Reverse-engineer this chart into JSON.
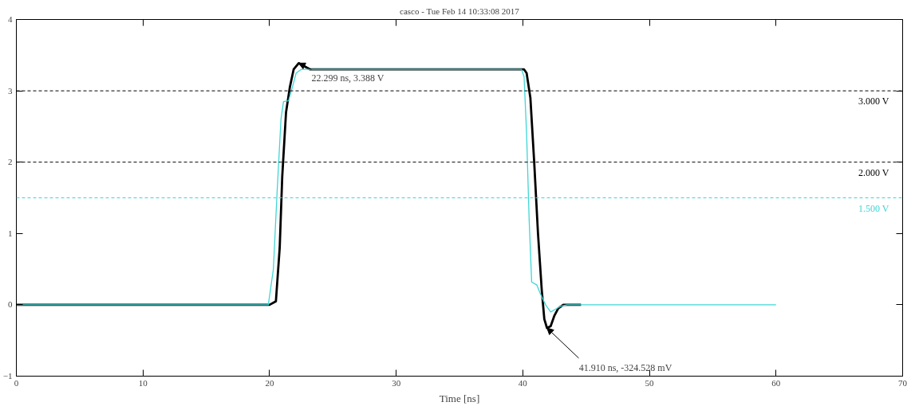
{
  "chart_data": {
    "type": "line",
    "title": "casco - Tue Feb 14 10:33:08 2017",
    "xlabel": "Time [ns]",
    "xlim": [
      0,
      70
    ],
    "ylim": [
      -1,
      4
    ],
    "xticks": [
      0,
      10,
      20,
      30,
      40,
      50,
      60,
      70
    ],
    "yticks": [
      -1,
      0,
      1,
      2,
      3,
      4
    ],
    "grid": false,
    "line_style": "solid",
    "series": [
      {
        "color": "#000000",
        "x": [
          0,
          20.0,
          20.5,
          20.8,
          21.0,
          21.3,
          21.6,
          21.9,
          22.299,
          23.2,
          24,
          40.1,
          40.3,
          40.6,
          40.9,
          41.2,
          41.5,
          41.7,
          41.91,
          42.2,
          42.5,
          42.8,
          43.2,
          43.6,
          44.6
        ],
        "values": [
          0,
          0,
          0.05,
          0.8,
          1.8,
          2.7,
          3.05,
          3.3,
          3.388,
          3.3,
          3.3,
          3.3,
          3.25,
          2.9,
          2.0,
          1.0,
          0.2,
          -0.2,
          -0.3245,
          -0.3,
          -0.15,
          -0.05,
          0,
          0,
          0
        ]
      },
      {
        "color": "#3fd6d6",
        "x": [
          0,
          19.9,
          20.3,
          20.6,
          20.9,
          21.1,
          21.5,
          21.8,
          22.1,
          22.5,
          23,
          39.9,
          40.1,
          40.3,
          40.5,
          40.7,
          41.1,
          41.4,
          41.8,
          42.2,
          42.6,
          43.0,
          43.5,
          60
        ],
        "values": [
          0,
          0,
          0.5,
          1.6,
          2.6,
          2.85,
          2.86,
          3.05,
          3.25,
          3.3,
          3.3,
          3.3,
          3.2,
          2.4,
          1.2,
          0.32,
          0.28,
          0.15,
          0.0,
          -0.1,
          -0.06,
          -0.02,
          0,
          0
        ]
      }
    ],
    "ref_lines": [
      {
        "axis": "y",
        "value": 3,
        "label": "3.000 V",
        "color": "#000000",
        "line_style": "dashed"
      },
      {
        "axis": "y",
        "value": 2,
        "label": "2.000 V",
        "color": "#000000",
        "line_style": "dashed"
      },
      {
        "axis": "y",
        "value": 1.5,
        "label": "1.500 V",
        "color": "#3fd6d6",
        "line_style": "dashed"
      }
    ],
    "annotations": [
      {
        "text": "22.299 ns, 3.388 V",
        "x": 22.299,
        "y": 3.388
      },
      {
        "text": "41.910 ns, -324.528 mV",
        "x": 41.91,
        "y": -0.3245
      }
    ]
  }
}
